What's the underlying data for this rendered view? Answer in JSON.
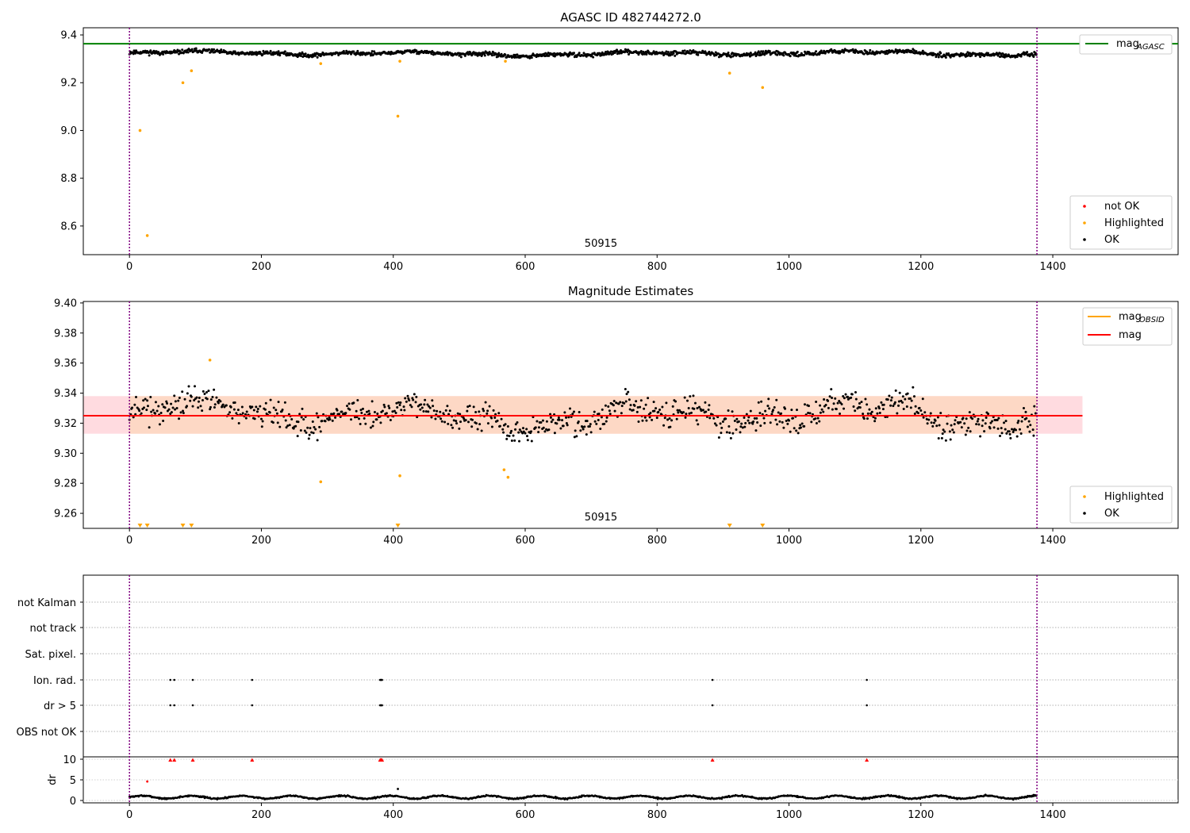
{
  "chart_data": [
    {
      "type": "scatter",
      "title": "AGASC ID 482744272.0",
      "xlim": [
        -70,
        1590
      ],
      "ylim": [
        8.48,
        9.43
      ],
      "xticks": [
        0,
        200,
        400,
        600,
        800,
        1000,
        1200,
        1400
      ],
      "yticks": [
        8.6,
        8.8,
        9.0,
        9.2,
        9.4
      ],
      "ytick_labels": [
        "8.6",
        "8.8",
        "9.0",
        "9.2",
        "9.4"
      ],
      "vlines": [
        0,
        1376
      ],
      "obsid_label": "50915",
      "obsid_label_x": 690,
      "hline": {
        "name": "mag",
        "subscript": "AGASC",
        "y": 9.363,
        "color": "#008000"
      },
      "series_ok": {
        "name": "OK",
        "color": "#000000",
        "mean": 9.322,
        "spread": 0.012
      },
      "series_highlighted": {
        "name": "Highlighted",
        "color": "#ffa500",
        "points": [
          [
            16,
            9.0
          ],
          [
            27,
            8.56
          ],
          [
            81,
            9.2
          ],
          [
            94,
            9.25
          ],
          [
            290,
            9.28
          ],
          [
            407,
            9.06
          ],
          [
            410,
            9.29
          ],
          [
            570,
            9.29
          ],
          [
            910,
            9.24
          ],
          [
            960,
            9.18
          ]
        ]
      },
      "series_not_ok": {
        "name": "not OK",
        "color": "#ff0000"
      }
    },
    {
      "type": "scatter",
      "title": "Magnitude Estimates",
      "xlim": [
        -70,
        1590
      ],
      "ylim": [
        9.25,
        9.401
      ],
      "xticks": [
        0,
        200,
        400,
        600,
        800,
        1000,
        1200,
        1400
      ],
      "yticks": [
        9.26,
        9.28,
        9.3,
        9.32,
        9.34,
        9.36,
        9.38,
        9.4
      ],
      "ytick_labels": [
        "9.26",
        "9.28",
        "9.30",
        "9.32",
        "9.34",
        "9.36",
        "9.38",
        "9.40"
      ],
      "vlines": [
        0,
        1376
      ],
      "obsid_label": "50915",
      "obsid_label_x": 690,
      "mag_line": {
        "name": "mag",
        "y": 9.325,
        "band": [
          9.313,
          9.338
        ],
        "x_range": [
          -70,
          1445
        ],
        "color": "#ff0000"
      },
      "mag_obsid": {
        "name": "mag",
        "subscript": "OBSID",
        "y": 9.325,
        "band": [
          9.313,
          9.338
        ],
        "x_range": [
          0,
          1376
        ],
        "color": "#ffa500"
      },
      "series_ok": {
        "name": "OK",
        "color": "#000000",
        "mean": 9.325,
        "spread": 0.012
      },
      "series_highlighted": {
        "name": "Highlighted",
        "color": "#ffa500",
        "points": [
          [
            290,
            9.281
          ],
          [
            410,
            9.285
          ],
          [
            568,
            9.289
          ],
          [
            574,
            9.284
          ]
        ],
        "triangles_at_bottom": [
          16,
          27,
          81,
          94,
          407,
          910,
          960
        ]
      }
    },
    {
      "type": "scatter",
      "xlim": [
        -70,
        1590
      ],
      "xticks": [
        0,
        200,
        400,
        600,
        800,
        1000,
        1200,
        1400
      ],
      "vlines": [
        0,
        1376
      ],
      "flag_rows": [
        "not Kalman",
        "not track",
        "Sat. pixel.",
        "Ion. rad.",
        "dr > 5",
        "OBS not OK"
      ],
      "flag_points": {
        "Ion. rad.": [
          62,
          68,
          96,
          186,
          380,
          381,
          382,
          383,
          884,
          1118
        ],
        "dr > 5": [
          62,
          68,
          96,
          186,
          380,
          381,
          382,
          383,
          884,
          1118
        ]
      },
      "dr": {
        "ylabel": "dr",
        "ylim": [
          0,
          10
        ],
        "yticks": [
          0,
          5,
          10
        ],
        "ytick_labels": [
          "0",
          "5",
          "10"
        ],
        "mean": 0.8,
        "spread": 0.35,
        "outliers": [
          [
            27,
            4.6
          ],
          [
            407,
            2.8
          ]
        ],
        "clipped_red": [
          62,
          68,
          96,
          186,
          380,
          381,
          382,
          383,
          884,
          1118
        ]
      }
    }
  ]
}
